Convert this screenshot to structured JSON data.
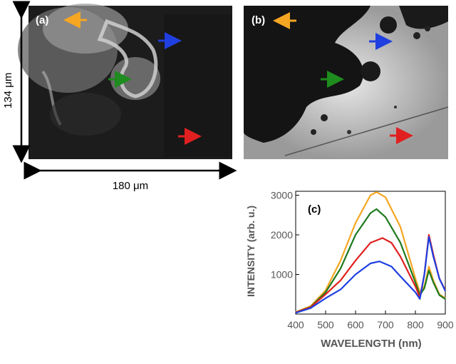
{
  "panels": {
    "a": {
      "label": "(a)",
      "arrows": [
        {
          "color": "#f5a623",
          "direction": "left"
        },
        {
          "color": "#1f3fe0",
          "direction": "right"
        },
        {
          "color": "#1e8c1e",
          "direction": "right"
        },
        {
          "color": "#e02020",
          "direction": "right"
        }
      ]
    },
    "b": {
      "label": "(b)",
      "arrows": [
        {
          "color": "#f5a623",
          "direction": "left"
        },
        {
          "color": "#1f3fe0",
          "direction": "right"
        },
        {
          "color": "#1e8c1e",
          "direction": "right"
        },
        {
          "color": "#e02020",
          "direction": "right"
        }
      ]
    }
  },
  "scale": {
    "height_label": "134 μm",
    "width_label": "180 μm"
  },
  "chart_data": {
    "type": "line",
    "panel_label": "(c)",
    "xlabel": "WAVELENGTH (nm)",
    "ylabel": "INTENSITY (arb. u.)",
    "xlim": [
      400,
      900
    ],
    "ylim": [
      0,
      3100
    ],
    "xticks": [
      "400",
      "500",
      "600",
      "700",
      "800",
      "900"
    ],
    "yticks": [
      "1000",
      "2000",
      "3000"
    ],
    "grid": false,
    "series": [
      {
        "color": "#f5a623",
        "x": [
          400,
          450,
          500,
          550,
          600,
          650,
          670,
          700,
          750,
          800,
          815,
          830,
          845,
          860,
          880,
          900
        ],
        "y": [
          50,
          200,
          600,
          1350,
          2300,
          3000,
          3080,
          2950,
          2200,
          900,
          550,
          700,
          1200,
          850,
          500,
          400
        ]
      },
      {
        "color": "#1e7a1e",
        "x": [
          400,
          450,
          500,
          550,
          600,
          650,
          670,
          700,
          750,
          800,
          815,
          830,
          845,
          860,
          880,
          900
        ],
        "y": [
          40,
          180,
          550,
          1150,
          2000,
          2550,
          2650,
          2450,
          1800,
          800,
          480,
          650,
          1100,
          800,
          480,
          380
        ]
      },
      {
        "color": "#e02020",
        "x": [
          400,
          450,
          500,
          550,
          600,
          650,
          690,
          720,
          750,
          800,
          815,
          830,
          845,
          860,
          880,
          900
        ],
        "y": [
          40,
          170,
          500,
          850,
          1350,
          1800,
          1920,
          1800,
          1450,
          700,
          420,
          1000,
          2000,
          1500,
          900,
          600
        ]
      },
      {
        "color": "#1f3fe0",
        "x": [
          400,
          450,
          500,
          550,
          600,
          650,
          680,
          720,
          750,
          800,
          815,
          830,
          845,
          860,
          880,
          900
        ],
        "y": [
          30,
          150,
          400,
          620,
          1000,
          1280,
          1330,
          1200,
          950,
          550,
          380,
          1000,
          1950,
          1450,
          900,
          580
        ]
      }
    ]
  }
}
